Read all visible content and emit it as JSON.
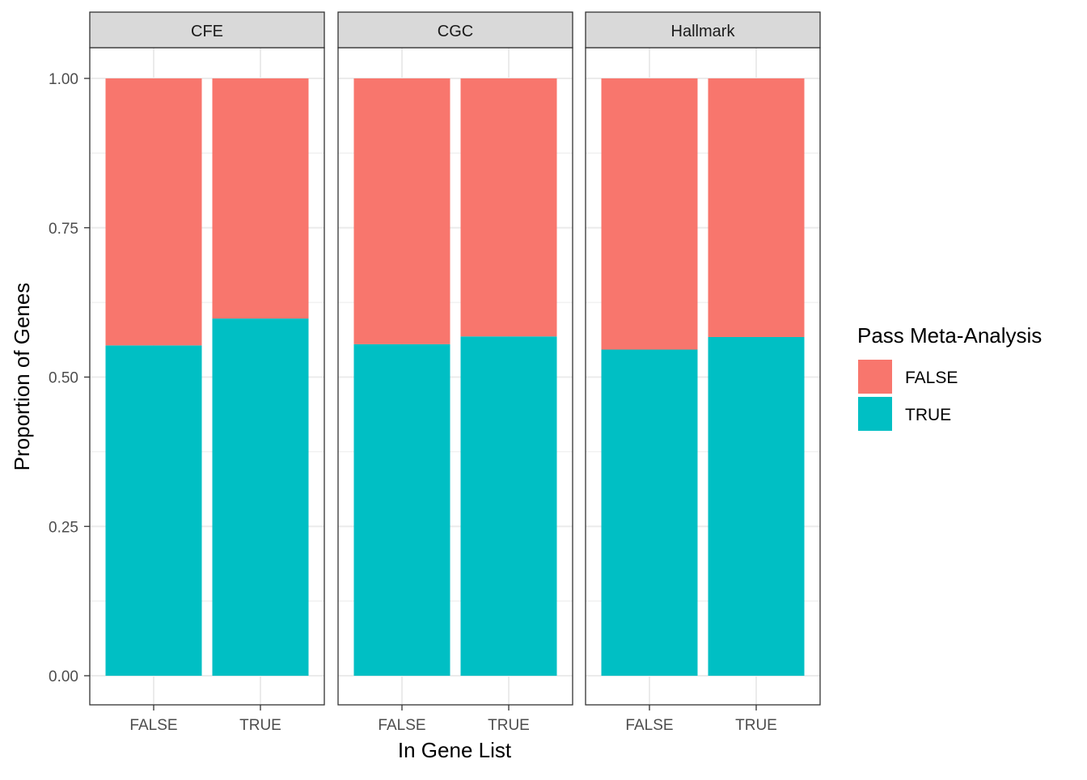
{
  "chart_data": {
    "type": "bar",
    "stacked": true,
    "xlabel": "In Gene List",
    "ylabel": "Proportion of Genes",
    "ylim": [
      0,
      1
    ],
    "yticks": [
      "0.00",
      "0.25",
      "0.50",
      "0.75",
      "1.00"
    ],
    "ytick_values": [
      0,
      0.25,
      0.5,
      0.75,
      1.0
    ],
    "categories": [
      "FALSE",
      "TRUE"
    ],
    "grid": true,
    "legend": {
      "title": "Pass Meta-Analysis",
      "placement": "right",
      "entries": [
        {
          "label": "FALSE",
          "color": "#F8766D"
        },
        {
          "label": "TRUE",
          "color": "#00BFC4"
        }
      ]
    },
    "facets": [
      {
        "label": "CFE",
        "series": [
          {
            "name": "TRUE",
            "color": "#00BFC4",
            "values": [
              0.553,
              0.598
            ]
          },
          {
            "name": "FALSE",
            "color": "#F8766D",
            "values": [
              0.447,
              0.402
            ]
          }
        ]
      },
      {
        "label": "CGC",
        "series": [
          {
            "name": "TRUE",
            "color": "#00BFC4",
            "values": [
              0.555,
              0.568
            ]
          },
          {
            "name": "FALSE",
            "color": "#F8766D",
            "values": [
              0.445,
              0.432
            ]
          }
        ]
      },
      {
        "label": "Hallmark",
        "series": [
          {
            "name": "TRUE",
            "color": "#00BFC4",
            "values": [
              0.546,
              0.567
            ]
          },
          {
            "name": "FALSE",
            "color": "#F8766D",
            "values": [
              0.454,
              0.433
            ]
          }
        ]
      }
    ]
  }
}
